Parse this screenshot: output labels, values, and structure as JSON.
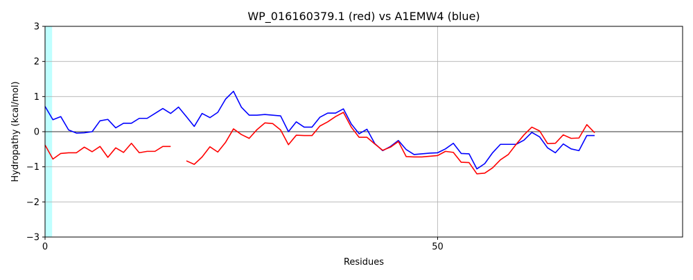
{
  "chart_data": {
    "type": "line",
    "title": "WP_016160379.1 (red) vs A1EMW4 (blue)",
    "xlabel": "Residues",
    "ylabel": "Hydropathy (kcal/mol)",
    "xlim": [
      0,
      81.2
    ],
    "ylim": [
      -3,
      3
    ],
    "xticks": [
      0,
      50
    ],
    "yticks": [
      -3,
      -2,
      -1,
      0,
      1,
      2,
      3
    ],
    "grid": true,
    "highlight_band": {
      "x_from": 0,
      "x_to": 0.9,
      "color": "#bfffff"
    },
    "series": [
      {
        "color": "#0000ff",
        "x": [
          0,
          1,
          2,
          3,
          4,
          5,
          6,
          7,
          8,
          9,
          10,
          11,
          12,
          13,
          14,
          15,
          16,
          17,
          18,
          19,
          20,
          21,
          22,
          23,
          24,
          25,
          26,
          27,
          28,
          29,
          30,
          31,
          32,
          33,
          34,
          35,
          36,
          37,
          38,
          39,
          40,
          41,
          42,
          43,
          44,
          45,
          46,
          47,
          48,
          49,
          50,
          51,
          52,
          53,
          54,
          55,
          56,
          57,
          58,
          59,
          60,
          61,
          62,
          63,
          64,
          65,
          66,
          67,
          68,
          69,
          70
        ],
        "values": [
          0.72,
          0.34,
          0.43,
          0.05,
          -0.04,
          -0.03,
          0.0,
          0.31,
          0.35,
          0.11,
          0.24,
          0.24,
          0.38,
          0.38,
          0.52,
          0.66,
          0.52,
          0.7,
          0.43,
          0.15,
          0.52,
          0.4,
          0.55,
          0.93,
          1.15,
          0.7,
          0.47,
          0.47,
          0.49,
          0.47,
          0.45,
          0.0,
          0.28,
          0.13,
          0.13,
          0.41,
          0.53,
          0.53,
          0.65,
          0.22,
          -0.06,
          0.07,
          -0.34,
          -0.54,
          -0.42,
          -0.25,
          -0.51,
          -0.65,
          -0.63,
          -0.61,
          -0.6,
          -0.49,
          -0.33,
          -0.62,
          -0.63,
          -1.06,
          -0.91,
          -0.6,
          -0.36,
          -0.36,
          -0.36,
          -0.24,
          -0.02,
          -0.15,
          -0.46,
          -0.6,
          -0.35,
          -0.49,
          -0.54,
          -0.11,
          -0.11
        ]
      },
      {
        "color": "#ff0000",
        "x": [
          0,
          1,
          2,
          3,
          4,
          5,
          6,
          7,
          8,
          9,
          10,
          11,
          12,
          13,
          14,
          15,
          16,
          null,
          18,
          19,
          20,
          21,
          22,
          23,
          24,
          25,
          26,
          27,
          28,
          29,
          30,
          31,
          32,
          33,
          34,
          35,
          36,
          37,
          38,
          39,
          40,
          41,
          42,
          43,
          44,
          45,
          46,
          47,
          48,
          49,
          50,
          51,
          52,
          53,
          54,
          55,
          56,
          57,
          58,
          59,
          60,
          61,
          62,
          63,
          64,
          65,
          66,
          67,
          68,
          69,
          70
        ],
        "values": [
          -0.38,
          -0.78,
          -0.62,
          -0.6,
          -0.6,
          -0.44,
          -0.57,
          -0.42,
          -0.73,
          -0.46,
          -0.59,
          -0.33,
          -0.6,
          -0.56,
          -0.56,
          -0.42,
          -0.42,
          null,
          -0.83,
          -0.93,
          -0.72,
          -0.43,
          -0.58,
          -0.3,
          0.08,
          -0.08,
          -0.19,
          0.06,
          0.25,
          0.23,
          0.05,
          -0.37,
          -0.1,
          -0.11,
          -0.11,
          0.16,
          0.28,
          0.43,
          0.55,
          0.13,
          -0.16,
          -0.16,
          -0.35,
          -0.53,
          -0.44,
          -0.28,
          -0.71,
          -0.72,
          -0.72,
          -0.7,
          -0.68,
          -0.56,
          -0.59,
          -0.87,
          -0.88,
          -1.2,
          -1.18,
          -1.03,
          -0.8,
          -0.65,
          -0.36,
          -0.09,
          0.13,
          0.02,
          -0.34,
          -0.33,
          -0.09,
          -0.19,
          -0.18,
          0.2,
          -0.03
        ]
      }
    ]
  }
}
